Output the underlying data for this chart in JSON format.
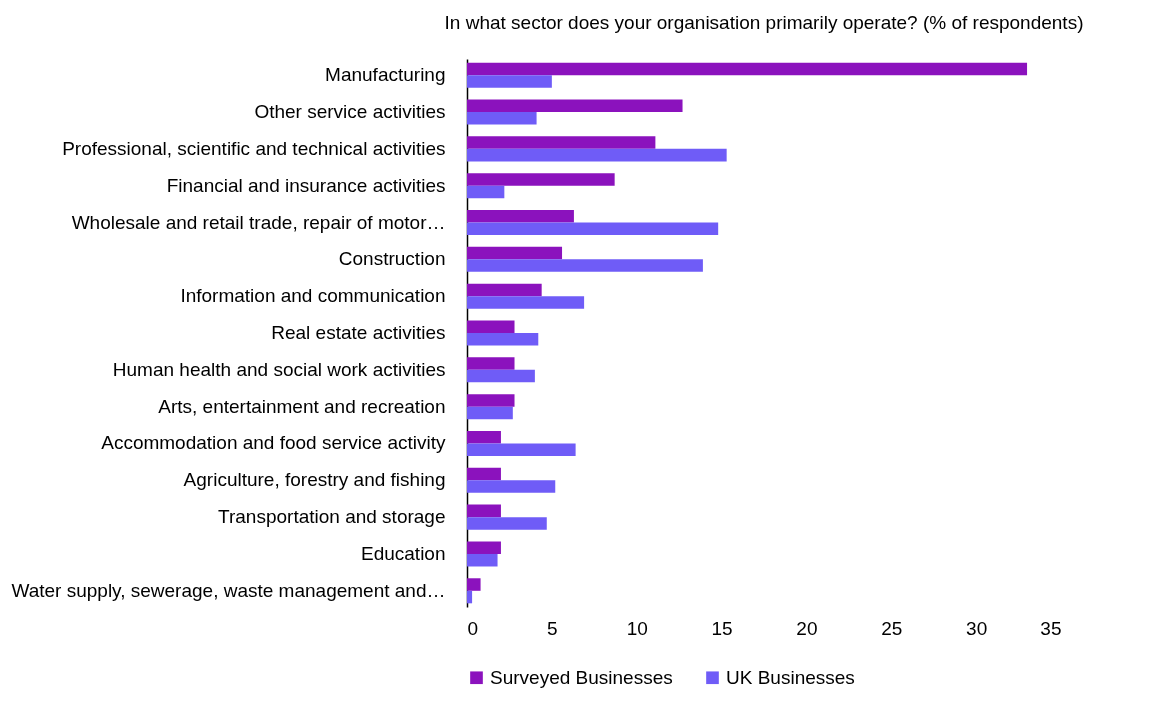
{
  "chart_data": {
    "type": "bar",
    "orientation": "horizontal",
    "title": "In what sector does your organisation primarily operate? (% of respondents)",
    "categories": [
      "Manufacturing",
      "Other service activities",
      "Professional, scientific and technical activities",
      "Financial and insurance activities",
      "Wholesale and retail trade, repair of motor…",
      "Construction",
      "Information and communication",
      "Real estate activities",
      "Human health and social work activities",
      "Arts, entertainment and recreation",
      "Accommodation and food service activity",
      "Agriculture, forestry and fishing",
      "Transportation and storage",
      "Education",
      "Water supply, sewerage, waste management and…"
    ],
    "series": [
      {
        "name": "Surveyed Businesses",
        "color": "#8b12bd",
        "values": [
          33.0,
          12.7,
          11.1,
          8.7,
          6.3,
          5.6,
          4.4,
          2.8,
          2.8,
          2.8,
          2.0,
          2.0,
          2.0,
          2.0,
          0.8
        ]
      },
      {
        "name": "UK Businesses",
        "color": "#6f5cf7",
        "values": [
          5.0,
          4.1,
          15.3,
          2.2,
          14.8,
          13.9,
          6.9,
          4.2,
          4.0,
          2.7,
          6.4,
          5.2,
          4.7,
          1.8,
          0.3
        ]
      }
    ],
    "xlim": [
      0,
      35
    ],
    "xticks": [
      0,
      5,
      10,
      15,
      20,
      25,
      30,
      35
    ],
    "grid": false,
    "legend": "bottom"
  }
}
